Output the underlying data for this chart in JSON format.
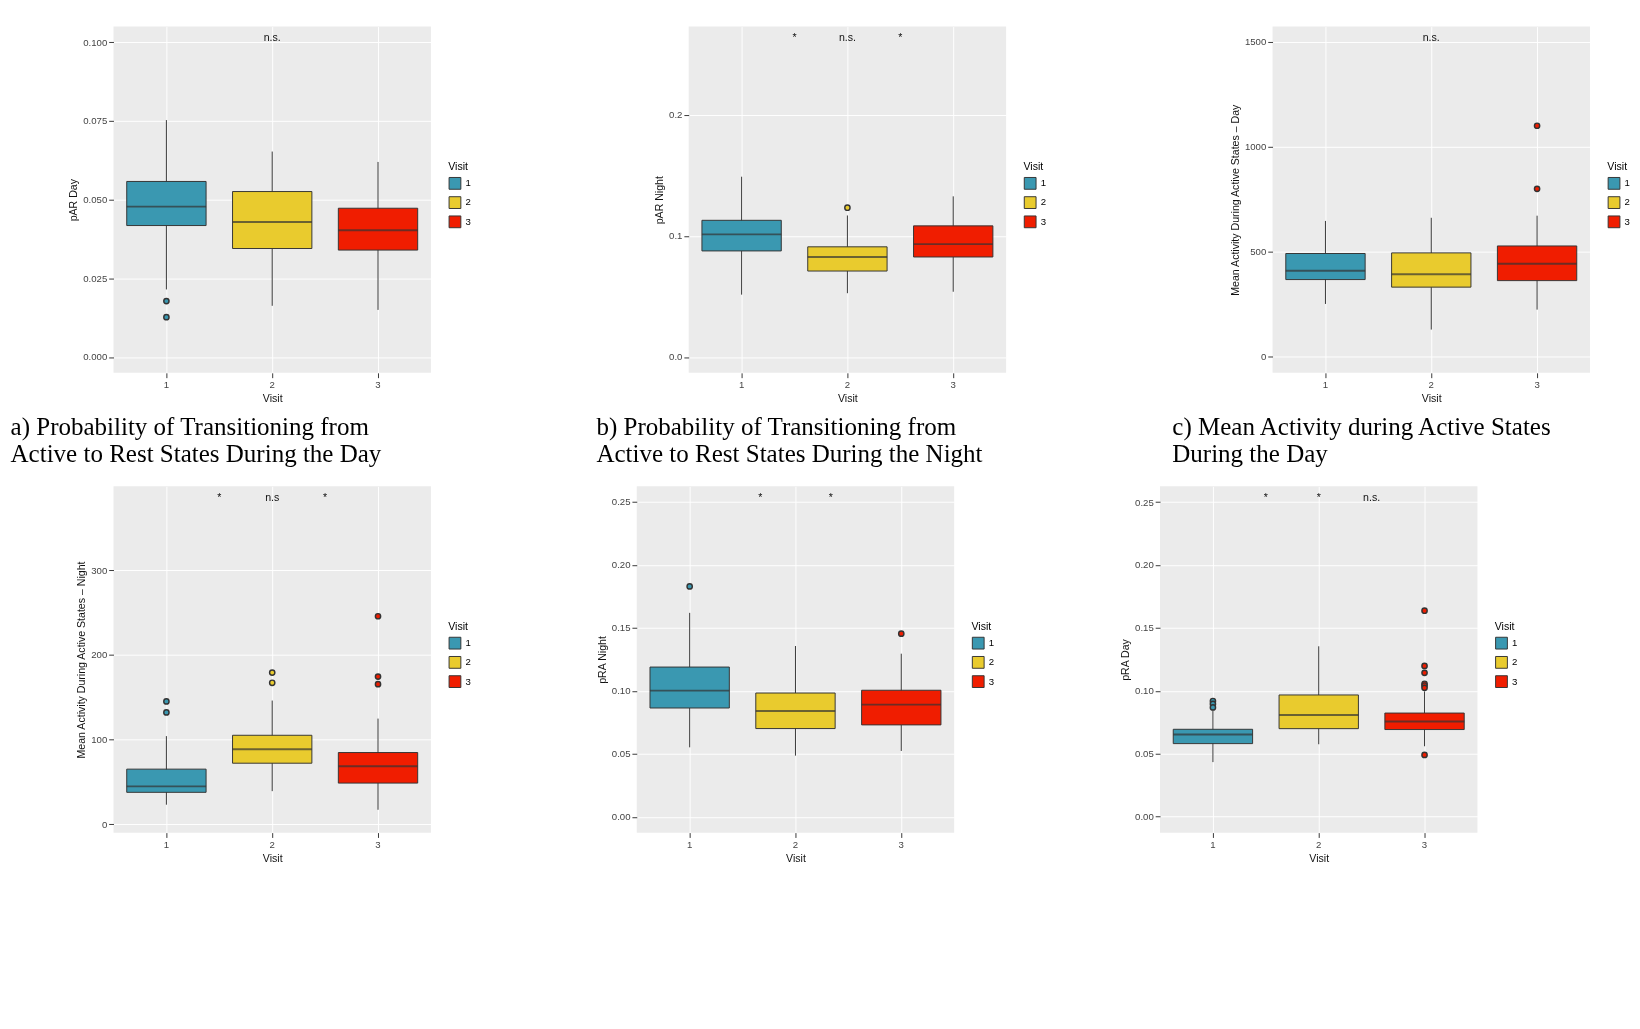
{
  "chart_data": [
    {
      "type": "box",
      "title": "a) Probability of Transitioning from Active to Rest States During the Day",
      "xlabel": "Visit",
      "ylabel": "pAR Day",
      "legend_title": "Visit",
      "legend": "right",
      "grid": true,
      "categories": [
        "1",
        "2",
        "3"
      ],
      "ylim": [
        -0.005,
        0.105
      ],
      "yticks": [
        {
          "value": 0,
          "label": "0.000"
        },
        {
          "value": 0.025,
          "label": "0.025"
        },
        {
          "value": 0.05,
          "label": "0.050"
        },
        {
          "value": 0.075,
          "label": "0.075"
        },
        {
          "value": 0.1,
          "label": "0.100"
        }
      ],
      "series": [
        {
          "name": "1",
          "color": "#3a98b1",
          "boxes": [
            {
              "low": 0.0215,
              "q1": 0.0418,
              "median": 0.0478,
              "q3": 0.0558,
              "high": 0.0753,
              "outliers": [
                0.0178,
                0.0127
              ]
            },
            null,
            null
          ]
        },
        {
          "name": "2",
          "color": "#e9cb2e",
          "boxes": [
            null,
            {
              "low": 0.0163,
              "q1": 0.0345,
              "median": 0.0429,
              "q3": 0.0526,
              "high": 0.0653
            },
            null
          ]
        },
        {
          "name": "3",
          "color": "#f01d00",
          "boxes": [
            null,
            null,
            {
              "low": 0.015,
              "q1": 0.034,
              "median": 0.0403,
              "q3": 0.0473,
              "high": 0.062
            }
          ]
        }
      ],
      "annotations": [
        "n.s."
      ]
    },
    {
      "type": "box",
      "title": "b) Probability of Transitioning from Active to Rest States During the Night",
      "xlabel": "Visit",
      "ylabel": "pAR Night",
      "legend_title": "Visit",
      "legend": "right",
      "grid": true,
      "categories": [
        "1",
        "2",
        "3"
      ],
      "ylim": [
        -0.013,
        0.273
      ],
      "yticks": [
        {
          "value": 0,
          "label": "0.0"
        },
        0.1,
        0.2
      ],
      "series": [
        {
          "name": "1",
          "color": "#3a98b1",
          "boxes": [
            {
              "low": 0.0516,
              "q1": 0.0877,
              "median": 0.1014,
              "q3": 0.113,
              "high": 0.149
            },
            null,
            null
          ]
        },
        {
          "name": "2",
          "color": "#e9cb2e",
          "boxes": [
            null,
            {
              "low": 0.0528,
              "q1": 0.0711,
              "median": 0.0827,
              "q3": 0.0911,
              "high": 0.117,
              "outliers": [
                0.1234
              ]
            },
            null
          ]
        },
        {
          "name": "3",
          "color": "#f01d00",
          "boxes": [
            null,
            null,
            {
              "low": 0.054,
              "q1": 0.0827,
              "median": 0.0933,
              "q3": 0.1084,
              "high": 0.1328
            }
          ]
        }
      ],
      "annotations": [
        "*",
        "n.s.",
        "*"
      ]
    },
    {
      "type": "box",
      "title": "c) Mean Activity during Active States During the Day",
      "xlabel": "Visit",
      "ylabel": "Mean Activity During Active States – Day",
      "legend_title": "Visit",
      "legend": "right",
      "grid": true,
      "categories": [
        "1",
        "2",
        "3"
      ],
      "ylim": [
        -76,
        1572
      ],
      "yticks": [
        0,
        500,
        1000,
        1500
      ],
      "series": [
        {
          "name": "1",
          "color": "#3a98b1",
          "boxes": [
            {
              "low": 252,
              "q1": 368,
              "median": 410,
              "q3": 492,
              "high": 647
            },
            null,
            null
          ]
        },
        {
          "name": "2",
          "color": "#e9cb2e",
          "boxes": [
            null,
            {
              "low": 130,
              "q1": 332,
              "median": 393,
              "q3": 495,
              "high": 662
            },
            null
          ]
        },
        {
          "name": "3",
          "color": "#f01d00",
          "boxes": [
            null,
            null,
            {
              "low": 225,
              "q1": 363,
              "median": 443,
              "q3": 528,
              "high": 672,
              "outliers": [
                1100,
                800
              ]
            }
          ]
        }
      ],
      "annotations": [
        "n.s."
      ]
    },
    {
      "type": "box",
      "xlabel": "Visit",
      "ylabel": "Mean Activity During Active States – Night",
      "legend_title": "Visit",
      "legend": "right",
      "grid": true,
      "categories": [
        "1",
        "2",
        "3"
      ],
      "ylim": [
        -10,
        399
      ],
      "yticks": [
        0,
        100,
        200,
        300
      ],
      "series": [
        {
          "name": "1",
          "color": "#3a98b1",
          "boxes": [
            {
              "low": 23,
              "q1": 37.6,
              "median": 44.6,
              "q3": 65,
              "high": 104,
              "outliers": [
                145,
                132
              ]
            },
            null,
            null
          ]
        },
        {
          "name": "2",
          "color": "#e9cb2e",
          "boxes": [
            null,
            {
              "low": 39,
              "q1": 72,
              "median": 88.5,
              "q3": 105,
              "high": 146,
              "outliers": [
                179,
                167
              ]
            },
            null
          ]
        },
        {
          "name": "3",
          "color": "#f01d00",
          "boxes": [
            null,
            null,
            {
              "low": 17,
              "q1": 48.5,
              "median": 68.5,
              "q3": 84.6,
              "high": 124.7,
              "outliers": [
                245.6,
                174.3,
                165.4
              ]
            }
          ]
        }
      ],
      "annotations": [
        "*",
        "n.s",
        "*"
      ]
    },
    {
      "type": "box",
      "xlabel": "Visit",
      "ylabel": "pRA Night",
      "legend_title": "Visit",
      "legend": "right",
      "grid": true,
      "categories": [
        "1",
        "2",
        "3"
      ],
      "ylim": [
        -0.0124,
        0.2624
      ],
      "yticks": [
        {
          "value": 0,
          "label": "0.00"
        },
        0.05,
        {
          "value": 0.1,
          "label": "0.10"
        },
        0.15,
        {
          "value": 0.2,
          "label": "0.20"
        },
        0.25
      ],
      "series": [
        {
          "name": "1",
          "color": "#3a98b1",
          "boxes": [
            {
              "low": 0.0553,
              "q1": 0.0865,
              "median": 0.1003,
              "q3": 0.119,
              "high": 0.162,
              "outliers": [
                0.183
              ]
            },
            null,
            null
          ]
        },
        {
          "name": "2",
          "color": "#e9cb2e",
          "boxes": [
            null,
            {
              "low": 0.0487,
              "q1": 0.0702,
              "median": 0.0841,
              "q3": 0.0984,
              "high": 0.1357
            },
            null
          ]
        },
        {
          "name": "3",
          "color": "#f01d00",
          "boxes": [
            null,
            null,
            {
              "low": 0.0524,
              "q1": 0.0731,
              "median": 0.0892,
              "q3": 0.1006,
              "high": 0.1296,
              "outliers": [
                0.1455
              ]
            }
          ]
        }
      ],
      "annotations": [
        "*",
        "*"
      ]
    },
    {
      "type": "box",
      "xlabel": "Visit",
      "ylabel": "pRA Day",
      "legend_title": "Visit",
      "legend": "right",
      "grid": true,
      "categories": [
        "1",
        "2",
        "3"
      ],
      "ylim": [
        -0.0128,
        0.2626
      ],
      "yticks": [
        {
          "value": 0,
          "label": "0.00"
        },
        0.05,
        {
          "value": 0.1,
          "label": "0.10"
        },
        0.15,
        {
          "value": 0.2,
          "label": "0.20"
        },
        0.25
      ],
      "series": [
        {
          "name": "1",
          "color": "#3a98b1",
          "boxes": [
            {
              "low": 0.0433,
              "q1": 0.058,
              "median": 0.0653,
              "q3": 0.0694,
              "high": 0.0845,
              "outliers": [
                0.0919,
                0.0896,
                0.0868
              ]
            },
            null,
            null
          ]
        },
        {
          "name": "2",
          "color": "#e9cb2e",
          "boxes": [
            null,
            {
              "low": 0.0575,
              "q1": 0.0699,
              "median": 0.0807,
              "q3": 0.0967,
              "high": 0.1354
            },
            null
          ]
        },
        {
          "name": "3",
          "color": "#f01d00",
          "boxes": [
            null,
            null,
            {
              "low": 0.0559,
              "q1": 0.0692,
              "median": 0.0756,
              "q3": 0.0823,
              "high": 0.0995,
              "outliers": [
                0.1637,
                0.1198,
                0.1143,
                0.1056,
                0.1042,
                0.1024,
                0.049
              ]
            }
          ]
        }
      ],
      "annotations": [
        "*",
        "*",
        "n.s."
      ]
    }
  ]
}
